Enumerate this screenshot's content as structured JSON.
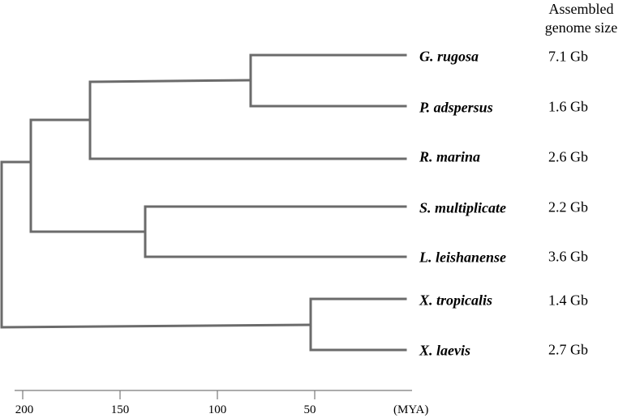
{
  "header": {
    "line1": "Assembled",
    "line2": "genome size"
  },
  "species": [
    {
      "name": "G. rugosa",
      "genome_size": "7.1 Gb"
    },
    {
      "name": "P. adspersus",
      "genome_size": "1.6 Gb"
    },
    {
      "name": "R. marina",
      "genome_size": "2.6 Gb"
    },
    {
      "name": "S. multiplicate",
      "genome_size": "2.2 Gb"
    },
    {
      "name": "L. leishanense",
      "genome_size": "3.6 Gb"
    },
    {
      "name": "X. tropicalis",
      "genome_size": "1.4 Gb"
    },
    {
      "name": "X. laevis",
      "genome_size": "2.7 Gb"
    }
  ],
  "axis": {
    "ticks": [
      "200",
      "150",
      "100",
      "50"
    ],
    "unit": "(MYA)"
  },
  "colors": {
    "branch": "#6b6b6b",
    "axis": "#7a7a7a"
  }
}
